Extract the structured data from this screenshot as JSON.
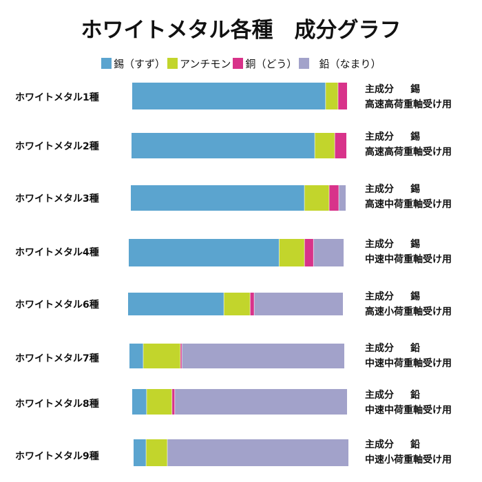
{
  "chart_data": {
    "type": "bar",
    "orientation": "horizontal",
    "stacked": true,
    "title": "ホワイトメタル各種　成分グラフ",
    "xlabel": "",
    "ylabel": "",
    "xlim": [
      0,
      100
    ],
    "grid": false,
    "legend_position": "top",
    "categories": [
      "ホワイトメタル1種",
      "ホワイトメタル2種",
      "ホワイトメタル3種",
      "ホワイトメタル4種",
      "ホワイトメタル6種",
      "ホワイトメタル7種",
      "ホワイトメタル8種",
      "ホワイトメタル9種"
    ],
    "series": [
      {
        "name": "錫（すず）",
        "color": "#5ba4cf",
        "values": [
          90.0,
          85.3,
          80.8,
          70.0,
          44.6,
          6.4,
          6.7,
          5.8
        ]
      },
      {
        "name": "アンチモン",
        "color": "#c2d52c",
        "values": [
          5.8,
          9.3,
          11.5,
          11.8,
          12.2,
          17.3,
          11.8,
          9.9
        ]
      },
      {
        "name": "銅（どう）",
        "color": "#d8338a",
        "values": [
          4.2,
          5.4,
          4.5,
          4.2,
          1.9,
          0.7,
          1.3,
          0.0
        ]
      },
      {
        "name": "鉛（なまり）",
        "color": "#a2a2ca",
        "values": [
          0.0,
          0.0,
          3.2,
          14.0,
          41.3,
          75.6,
          80.2,
          84.3
        ]
      }
    ],
    "annotations": [
      {
        "main_component_label": "主成分",
        "main_component": "錫",
        "usage": "高速高荷重軸受け用"
      },
      {
        "main_component_label": "主成分",
        "main_component": "錫",
        "usage": "高速高荷重軸受け用"
      },
      {
        "main_component_label": "主成分",
        "main_component": "錫",
        "usage": "高速中荷重軸受け用"
      },
      {
        "main_component_label": "主成分",
        "main_component": "錫",
        "usage": "中速中荷重軸受け用"
      },
      {
        "main_component_label": "主成分",
        "main_component": "錫",
        "usage": "高速小荷重軸受け用"
      },
      {
        "main_component_label": "主成分",
        "main_component": "鉛",
        "usage": "中速中荷重軸受け用"
      },
      {
        "main_component_label": "主成分",
        "main_component": "鉛",
        "usage": "中速中荷重軸受け用"
      },
      {
        "main_component_label": "主成分",
        "main_component": "鉛",
        "usage": "中速小荷重軸受け用"
      }
    ]
  }
}
